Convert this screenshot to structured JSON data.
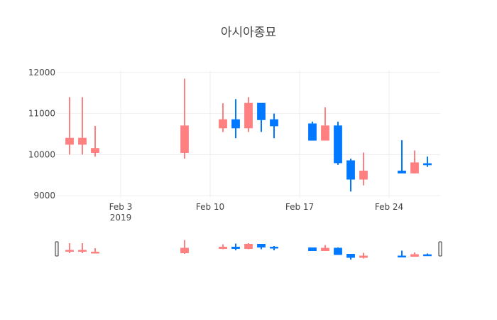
{
  "chart_data": {
    "type": "candlestick",
    "title": "아시아종묘",
    "x_range": [
      "2019-01-29",
      "2019-02-28"
    ],
    "ylim": [
      8950,
      12050
    ],
    "y_ticks": [
      9000,
      10000,
      11000,
      12000
    ],
    "y_tick_labels": [
      "9000",
      "10000",
      "11000",
      "12000"
    ],
    "x_ticks": [
      {
        "date": "2019-02-03",
        "label": "Feb 3",
        "sublabel": "2019"
      },
      {
        "date": "2019-02-10",
        "label": "Feb 10",
        "sublabel": ""
      },
      {
        "date": "2019-02-17",
        "label": "Feb 17",
        "sublabel": ""
      },
      {
        "date": "2019-02-24",
        "label": "Feb 24",
        "sublabel": ""
      }
    ],
    "increasing_color": "#ff8080",
    "decreasing_color": "#0078ff",
    "candles": [
      {
        "date": "2019-01-30",
        "open": 10250,
        "high": 11400,
        "low": 10000,
        "close": 10400
      },
      {
        "date": "2019-01-31",
        "open": 10250,
        "high": 11400,
        "low": 10000,
        "close": 10400
      },
      {
        "date": "2019-02-01",
        "open": 10050,
        "high": 10700,
        "low": 9950,
        "close": 10150
      },
      {
        "date": "2019-02-08",
        "open": 10050,
        "high": 11850,
        "low": 9900,
        "close": 10700
      },
      {
        "date": "2019-02-11",
        "open": 10650,
        "high": 11250,
        "low": 10550,
        "close": 10850
      },
      {
        "date": "2019-02-12",
        "open": 10850,
        "high": 11350,
        "low": 10400,
        "close": 10650
      },
      {
        "date": "2019-02-13",
        "open": 10650,
        "high": 11400,
        "low": 10550,
        "close": 11250
      },
      {
        "date": "2019-02-14",
        "open": 11250,
        "high": 11250,
        "low": 10550,
        "close": 10850
      },
      {
        "date": "2019-02-15",
        "open": 10850,
        "high": 11000,
        "low": 10400,
        "close": 10700
      },
      {
        "date": "2019-02-18",
        "open": 10750,
        "high": 10800,
        "low": 10350,
        "close": 10350
      },
      {
        "date": "2019-02-19",
        "open": 10350,
        "high": 11150,
        "low": 10350,
        "close": 10700
      },
      {
        "date": "2019-02-20",
        "open": 10700,
        "high": 10800,
        "low": 9750,
        "close": 9800
      },
      {
        "date": "2019-02-21",
        "open": 9850,
        "high": 9900,
        "low": 9100,
        "close": 9400
      },
      {
        "date": "2019-02-22",
        "open": 9400,
        "high": 10050,
        "low": 9250,
        "close": 9600
      },
      {
        "date": "2019-02-25",
        "open": 9600,
        "high": 10350,
        "low": 9550,
        "close": 9550
      },
      {
        "date": "2019-02-26",
        "open": 9550,
        "high": 10100,
        "low": 9550,
        "close": 9800
      },
      {
        "date": "2019-02-27",
        "open": 9780,
        "high": 9950,
        "low": 9700,
        "close": 9750
      }
    ]
  }
}
